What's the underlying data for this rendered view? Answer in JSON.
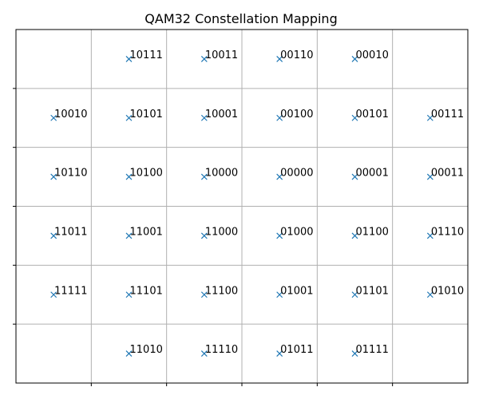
{
  "chart_data": {
    "type": "scatter",
    "title": "QAM32 Constellation Mapping",
    "xlabel": "",
    "ylabel": "",
    "xlim": [
      -6,
      6
    ],
    "ylim": [
      -6,
      6
    ],
    "grid": true,
    "marker": "x",
    "marker_color": "#1f77b4",
    "points": [
      {
        "x": -3,
        "y": 5,
        "label": "10111"
      },
      {
        "x": -1,
        "y": 5,
        "label": "10011"
      },
      {
        "x": 1,
        "y": 5,
        "label": "00110"
      },
      {
        "x": 3,
        "y": 5,
        "label": "00010"
      },
      {
        "x": -5,
        "y": 3,
        "label": "10010"
      },
      {
        "x": -3,
        "y": 3,
        "label": "10101"
      },
      {
        "x": -1,
        "y": 3,
        "label": "10001"
      },
      {
        "x": 1,
        "y": 3,
        "label": "00100"
      },
      {
        "x": 3,
        "y": 3,
        "label": "00101"
      },
      {
        "x": 5,
        "y": 3,
        "label": "00111"
      },
      {
        "x": -5,
        "y": 1,
        "label": "10110"
      },
      {
        "x": -3,
        "y": 1,
        "label": "10100"
      },
      {
        "x": -1,
        "y": 1,
        "label": "10000"
      },
      {
        "x": 1,
        "y": 1,
        "label": "00000"
      },
      {
        "x": 3,
        "y": 1,
        "label": "00001"
      },
      {
        "x": 5,
        "y": 1,
        "label": "00011"
      },
      {
        "x": -5,
        "y": -1,
        "label": "11011"
      },
      {
        "x": -3,
        "y": -1,
        "label": "11001"
      },
      {
        "x": -1,
        "y": -1,
        "label": "11000"
      },
      {
        "x": 1,
        "y": -1,
        "label": "01000"
      },
      {
        "x": 3,
        "y": -1,
        "label": "01100"
      },
      {
        "x": 5,
        "y": -1,
        "label": "01110"
      },
      {
        "x": -5,
        "y": -3,
        "label": "11111"
      },
      {
        "x": -3,
        "y": -3,
        "label": "11101"
      },
      {
        "x": -1,
        "y": -3,
        "label": "11100"
      },
      {
        "x": 1,
        "y": -3,
        "label": "01001"
      },
      {
        "x": 3,
        "y": -3,
        "label": "01101"
      },
      {
        "x": 5,
        "y": -3,
        "label": "01010"
      },
      {
        "x": -3,
        "y": -5,
        "label": "11010"
      },
      {
        "x": -1,
        "y": -5,
        "label": "11110"
      },
      {
        "x": 1,
        "y": -5,
        "label": "01011"
      },
      {
        "x": 3,
        "y": -5,
        "label": "01111"
      }
    ]
  }
}
